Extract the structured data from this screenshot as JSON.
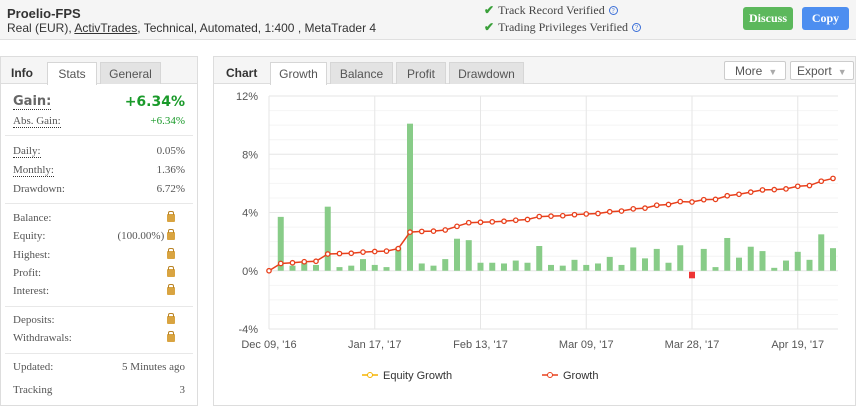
{
  "header": {
    "title": "Proelio-FPS",
    "sub_prefix": "Real (EUR), ",
    "broker": "ActivTrades",
    "sub_suffix": ", Technical, Automated, 1:400 , MetaTrader 4",
    "verified": [
      "Track Record Verified",
      "Trading Privileges Verified"
    ],
    "help": "?",
    "check": "✔",
    "discuss": "Discuss",
    "copy": "Copy"
  },
  "colors": {
    "discuss": "#5cb85c",
    "copy": "#4d8ef0",
    "gain": "#1a9a2a",
    "bar_pos": "#88cc88",
    "bar_neg": "#ee3333",
    "growth": "#e8401c",
    "equity": "#f5b300"
  },
  "info": {
    "label": "Info",
    "tabs": [
      "Stats",
      "General"
    ],
    "gain_label": "Gain:",
    "gain": "+6.34%",
    "abs_label": "Abs. Gain:",
    "abs": "+6.34%",
    "daily_label": "Daily:",
    "daily": "0.05%",
    "monthly_label": "Monthly:",
    "monthly": "1.36%",
    "drawdown_label": "Drawdown:",
    "drawdown": "6.72%",
    "balance_label": "Balance:",
    "equity_label": "Equity:",
    "equity": "(100.00%)",
    "highest_label": "Highest:",
    "profit_label": "Profit:",
    "interest_label": "Interest:",
    "deposits_label": "Deposits:",
    "withdrawals_label": "Withdrawals:",
    "updated_label": "Updated:",
    "updated": "5 Minutes ago",
    "tracking_label": "Tracking",
    "tracking": "3"
  },
  "chart_panel": {
    "label": "Chart",
    "tabs": [
      "Growth",
      "Balance",
      "Profit",
      "Drawdown"
    ],
    "more": "More",
    "export": "Export",
    "arrow": "▼"
  },
  "chart_data": {
    "type": "bar+line",
    "ylim": [
      -4,
      12
    ],
    "yticks": [
      "12%",
      "8%",
      "4%",
      "0%",
      "-4%"
    ],
    "ytick_values": [
      12,
      8,
      4,
      0,
      -4
    ],
    "xtick_labels": [
      "Dec 09, '16",
      "Jan 17, '17",
      "Feb 13, '17",
      "Mar 09, '17",
      "Mar 28, '17",
      "Apr 19, '17"
    ],
    "xtick_indices": [
      0,
      9,
      18,
      27,
      36,
      45
    ],
    "legend": [
      "Equity Growth",
      "Growth"
    ],
    "growth": [
      0,
      0.5,
      0.55,
      0.62,
      0.65,
      1.15,
      1.18,
      1.2,
      1.28,
      1.32,
      1.35,
      1.52,
      2.65,
      2.7,
      2.72,
      2.8,
      3.05,
      3.3,
      3.33,
      3.36,
      3.4,
      3.47,
      3.52,
      3.72,
      3.75,
      3.78,
      3.85,
      3.9,
      3.93,
      4.05,
      4.1,
      4.25,
      4.3,
      4.5,
      4.55,
      4.75,
      4.72,
      4.88,
      4.9,
      5.15,
      5.25,
      5.4,
      5.55,
      5.57,
      5.62,
      5.8,
      5.85,
      6.15,
      6.34
    ],
    "daily_bars": [
      0,
      3.7,
      0.35,
      0.55,
      0.4,
      4.4,
      0.25,
      0.35,
      0.8,
      0.4,
      0.25,
      1.6,
      10.1,
      0.5,
      0.35,
      0.8,
      2.2,
      2.1,
      0.55,
      0.55,
      0.5,
      0.7,
      0.55,
      1.7,
      0.4,
      0.35,
      0.75,
      0.4,
      0.5,
      0.95,
      0.4,
      1.6,
      0.85,
      1.5,
      0.55,
      1.75,
      -0.45,
      1.5,
      0.25,
      2.25,
      0.9,
      1.65,
      1.35,
      0.2,
      0.7,
      1.3,
      0.75,
      2.5,
      1.55
    ]
  }
}
